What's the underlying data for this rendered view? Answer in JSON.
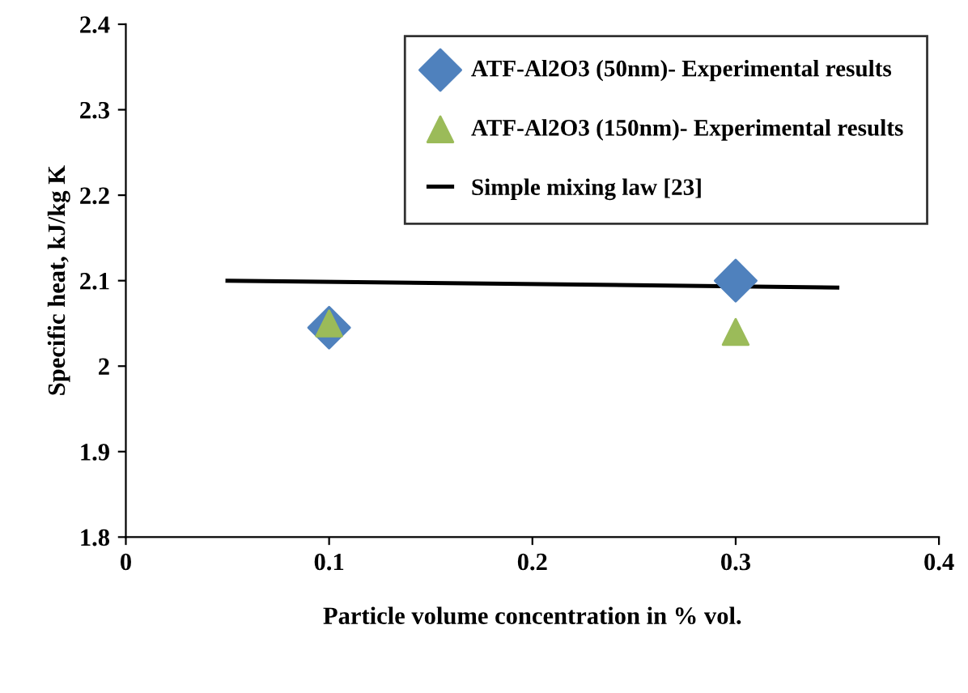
{
  "chart_data": {
    "type": "scatter",
    "xlabel": "Particle volume concentration in % vol.",
    "ylabel": "Specific heat, kJ/kg K",
    "series": [
      {
        "name": "ATF-Al2O3 (50nm)- Experimental results",
        "color": "#4f81bd",
        "marker": "diamond",
        "x": [
          0.1,
          0.3
        ],
        "values": [
          2.045,
          2.1
        ]
      },
      {
        "name": "ATF-Al2O3 (150nm)- Experimental results",
        "color": "#9bbb59",
        "marker": "triangle",
        "x": [
          0.1,
          0.3
        ],
        "values": [
          2.05,
          2.04
        ]
      },
      {
        "name": "Simple mixing law [23]",
        "type": "line",
        "color": "#000000",
        "marker": "none",
        "x": [
          0.05,
          0.35
        ],
        "values": [
          2.1,
          2.092
        ]
      }
    ],
    "xlim": [
      0,
      0.4
    ],
    "xticks": [
      0,
      0.1,
      0.2,
      0.3,
      0.4
    ],
    "ylim": [
      1.8,
      2.4
    ],
    "yticks": [
      1.8,
      1.9,
      2,
      2.1,
      2.2,
      2.3,
      2.4
    ],
    "grid": false,
    "legend": "top right"
  }
}
